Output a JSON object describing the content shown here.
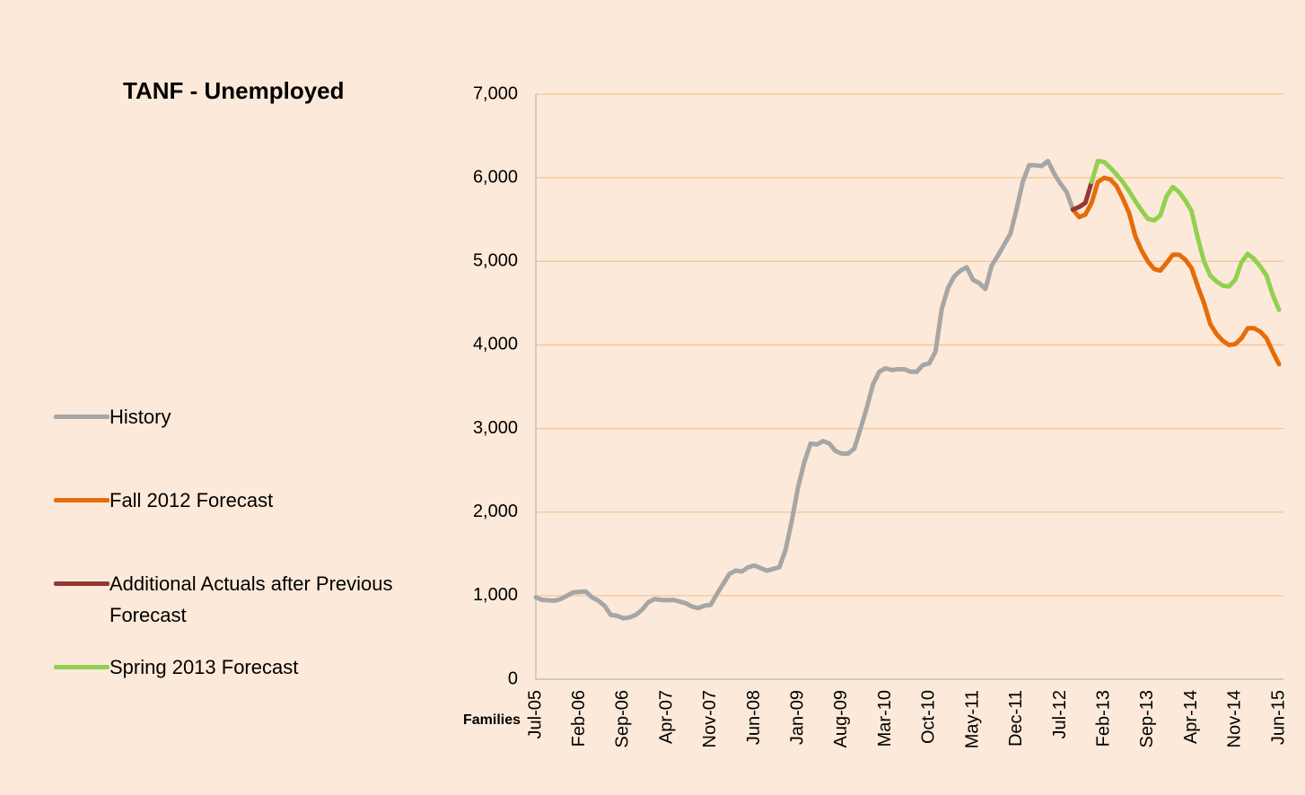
{
  "chart_data": {
    "type": "line",
    "title": "TANF - Unemployed",
    "x_axis_label": "Families",
    "categories": [
      "Jul-05",
      null,
      null,
      null,
      null,
      null,
      null,
      "Feb-06",
      null,
      null,
      null,
      null,
      null,
      null,
      "Sep-06",
      null,
      null,
      null,
      null,
      null,
      null,
      "Apr-07",
      null,
      null,
      null,
      null,
      null,
      null,
      "Nov-07",
      null,
      null,
      null,
      null,
      null,
      null,
      "Jun-08",
      null,
      null,
      null,
      null,
      null,
      null,
      "Jan-09",
      null,
      null,
      null,
      null,
      null,
      null,
      "Aug-09",
      null,
      null,
      null,
      null,
      null,
      null,
      "Mar-10",
      null,
      null,
      null,
      null,
      null,
      null,
      "Oct-10",
      null,
      null,
      null,
      null,
      null,
      null,
      "May-11",
      null,
      null,
      null,
      null,
      null,
      null,
      "Dec-11",
      null,
      null,
      null,
      null,
      null,
      null,
      "Jul-12",
      null,
      null,
      null,
      null,
      null,
      null,
      "Feb-13",
      null,
      null,
      null,
      null,
      null,
      null,
      "Sep-13",
      null,
      null,
      null,
      null,
      null,
      null,
      "Apr-14",
      null,
      null,
      null,
      null,
      null,
      null,
      "Nov-14",
      null,
      null,
      null,
      null,
      null,
      null,
      "Jun-15"
    ],
    "series": [
      {
        "name": "History",
        "color": "#a6a6a6",
        "values": [
          980,
          950,
          945,
          940,
          960,
          1000,
          1040,
          1045,
          1050,
          980,
          940,
          880,
          770,
          760,
          730,
          740,
          770,
          830,
          920,
          960,
          950,
          945,
          950,
          930,
          910,
          870,
          850,
          880,
          890,
          1020,
          1140,
          1260,
          1300,
          1290,
          1340,
          1360,
          1330,
          1300,
          1320,
          1340,
          1550,
          1900,
          2300,
          2600,
          2820,
          2810,
          2850,
          2820,
          2730,
          2700,
          2700,
          2760,
          3000,
          3250,
          3530,
          3680,
          3720,
          3700,
          3710,
          3710,
          3680,
          3680,
          3760,
          3780,
          3920,
          4430,
          4680,
          4820,
          4890,
          4930,
          4780,
          4740,
          4670,
          4950,
          5070,
          5200,
          5330,
          5630,
          5960,
          6150,
          6150,
          6140,
          6200,
          6050,
          5930,
          5830,
          5620,
          null,
          null,
          null,
          null,
          null,
          null,
          null,
          null,
          null,
          null,
          null,
          null,
          null,
          null,
          null,
          null,
          null,
          null,
          null,
          null,
          null,
          null,
          null,
          null,
          null,
          null,
          null,
          null,
          null,
          null,
          null,
          null,
          null
        ]
      },
      {
        "name": "Fall 2012 Forecast",
        "color": "#e46c0a",
        "values": [
          null,
          null,
          null,
          null,
          null,
          null,
          null,
          null,
          null,
          null,
          null,
          null,
          null,
          null,
          null,
          null,
          null,
          null,
          null,
          null,
          null,
          null,
          null,
          null,
          null,
          null,
          null,
          null,
          null,
          null,
          null,
          null,
          null,
          null,
          null,
          null,
          null,
          null,
          null,
          null,
          null,
          null,
          null,
          null,
          null,
          null,
          null,
          null,
          null,
          null,
          null,
          null,
          null,
          null,
          null,
          null,
          null,
          null,
          null,
          null,
          null,
          null,
          null,
          null,
          null,
          null,
          null,
          null,
          null,
          null,
          null,
          null,
          null,
          null,
          null,
          null,
          null,
          null,
          null,
          null,
          null,
          null,
          null,
          null,
          null,
          null,
          5620,
          5530,
          5560,
          5700,
          5950,
          6000,
          5980,
          5900,
          5750,
          5580,
          5300,
          5130,
          5000,
          4910,
          4890,
          4980,
          5080,
          5080,
          5020,
          4920,
          4700,
          4500,
          4250,
          4130,
          4050,
          4000,
          4010,
          4080,
          4200,
          4200,
          4160,
          4080,
          3920,
          3770
        ]
      },
      {
        "name": "Additional Actuals after Previous Forecast",
        "color": "#953735",
        "values": [
          null,
          null,
          null,
          null,
          null,
          null,
          null,
          null,
          null,
          null,
          null,
          null,
          null,
          null,
          null,
          null,
          null,
          null,
          null,
          null,
          null,
          null,
          null,
          null,
          null,
          null,
          null,
          null,
          null,
          null,
          null,
          null,
          null,
          null,
          null,
          null,
          null,
          null,
          null,
          null,
          null,
          null,
          null,
          null,
          null,
          null,
          null,
          null,
          null,
          null,
          null,
          null,
          null,
          null,
          null,
          null,
          null,
          null,
          null,
          null,
          null,
          null,
          null,
          null,
          null,
          null,
          null,
          null,
          null,
          null,
          null,
          null,
          null,
          null,
          null,
          null,
          null,
          null,
          null,
          null,
          null,
          null,
          null,
          null,
          null,
          null,
          5620,
          5650,
          5700,
          5950,
          null,
          null,
          null,
          null,
          null,
          null,
          null,
          null,
          null,
          null,
          null,
          null,
          null,
          null,
          null,
          null,
          null,
          null,
          null,
          null,
          null,
          null,
          null,
          null,
          null,
          null,
          null,
          null,
          null,
          null
        ]
      },
      {
        "name": "Spring 2013 Forecast",
        "color": "#92d050",
        "values": [
          null,
          null,
          null,
          null,
          null,
          null,
          null,
          null,
          null,
          null,
          null,
          null,
          null,
          null,
          null,
          null,
          null,
          null,
          null,
          null,
          null,
          null,
          null,
          null,
          null,
          null,
          null,
          null,
          null,
          null,
          null,
          null,
          null,
          null,
          null,
          null,
          null,
          null,
          null,
          null,
          null,
          null,
          null,
          null,
          null,
          null,
          null,
          null,
          null,
          null,
          null,
          null,
          null,
          null,
          null,
          null,
          null,
          null,
          null,
          null,
          null,
          null,
          null,
          null,
          null,
          null,
          null,
          null,
          null,
          null,
          null,
          null,
          null,
          null,
          null,
          null,
          null,
          null,
          null,
          null,
          null,
          null,
          null,
          null,
          null,
          null,
          null,
          null,
          null,
          5950,
          6200,
          6190,
          6120,
          6040,
          5950,
          5840,
          5720,
          5610,
          5510,
          5490,
          5550,
          5780,
          5890,
          5830,
          5730,
          5600,
          5280,
          5000,
          4830,
          4760,
          4710,
          4700,
          4780,
          4990,
          5090,
          5030,
          4940,
          4830,
          4600,
          4420
        ]
      }
    ],
    "ylim": [
      0,
      7000
    ],
    "yticks": [
      0,
      {
        "value": 1000,
        "label": "1,000"
      },
      {
        "value": 2000,
        "label": "2,000"
      },
      {
        "value": 3000,
        "label": "3,000"
      },
      {
        "value": 4000,
        "label": "4,000"
      },
      {
        "value": 5000,
        "label": "5,000"
      },
      {
        "value": 6000,
        "label": "6,000"
      },
      {
        "value": 7000,
        "label": "7,000"
      }
    ],
    "grid": true,
    "legend": "left"
  }
}
